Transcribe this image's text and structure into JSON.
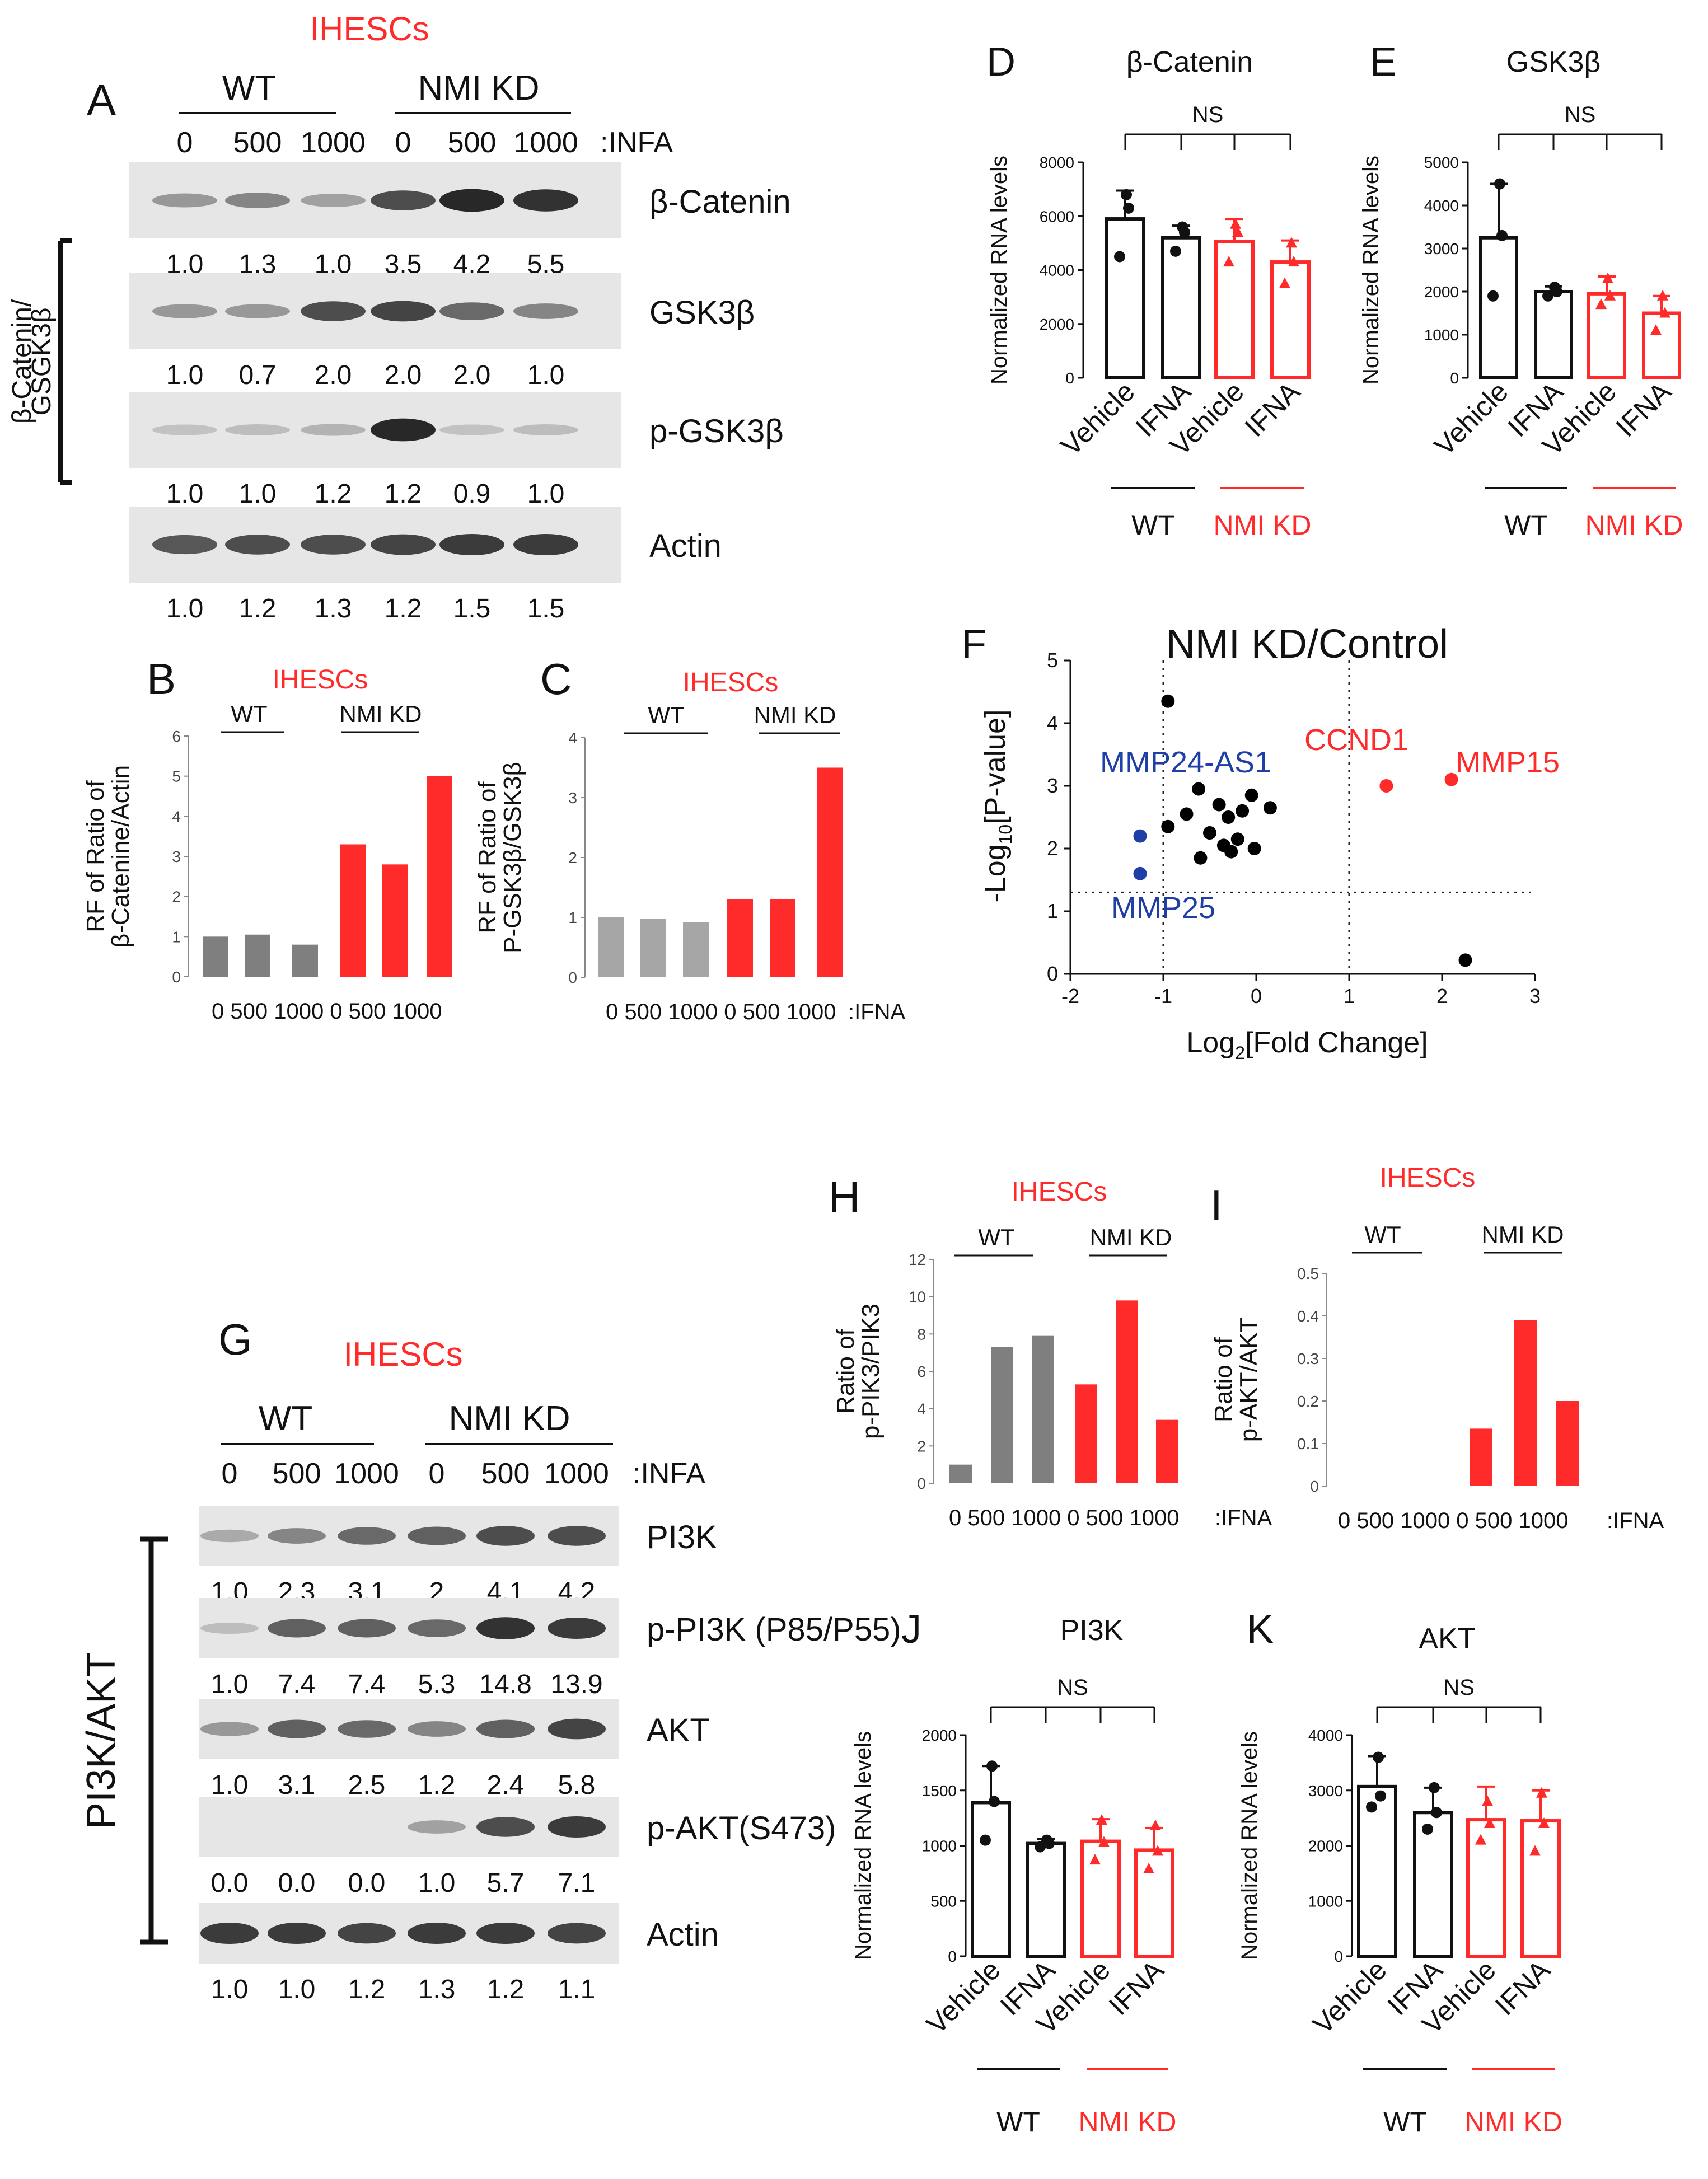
{
  "figure": {
    "panelA": {
      "letter": "A",
      "cell": "IHESCs",
      "groups": [
        "WT",
        "NMI KD"
      ],
      "doses": [
        "0",
        "500",
        "1000",
        "0",
        "500",
        "1000"
      ],
      "treatment": ":INFA",
      "side_label_line1": "β-Catenin/",
      "side_label_line2": "GSGK3β",
      "blots": [
        {
          "label": "β-Catenin",
          "intensities": [
            0.35,
            0.45,
            0.3,
            0.75,
            0.95,
            0.9
          ],
          "values": [
            "1.0",
            "1.3",
            "1.0",
            "3.5",
            "4.2",
            "5.5"
          ]
        },
        {
          "label": "GSK3β",
          "intensities": [
            0.35,
            0.35,
            0.75,
            0.8,
            0.6,
            0.45
          ],
          "values": [
            "1.0",
            "0.7",
            "2.0",
            "2.0",
            "2.0",
            "1.0"
          ]
        },
        {
          "label": "p-GSK3β",
          "intensities": [
            0.12,
            0.15,
            0.2,
            0.95,
            0.12,
            0.15
          ],
          "values": [
            "1.0",
            "1.0",
            "1.2",
            "1.2",
            "0.9",
            "1.0"
          ]
        },
        {
          "label": "Actin",
          "intensities": [
            0.7,
            0.75,
            0.75,
            0.8,
            0.85,
            0.85
          ],
          "values": [
            "1.0",
            "1.2",
            "1.3",
            "1.2",
            "1.5",
            "1.5"
          ]
        }
      ]
    },
    "panelG": {
      "letter": "G",
      "cell": "IHESCs",
      "groups": [
        "WT",
        "NMI KD"
      ],
      "doses": [
        "0",
        "500",
        "1000",
        "0",
        "500",
        "1000"
      ],
      "treatment": ":INFA",
      "side_label": "PI3K/AKT",
      "blots": [
        {
          "label": "PI3K",
          "intensities": [
            0.25,
            0.45,
            0.6,
            0.65,
            0.75,
            0.75
          ],
          "values": [
            "1.0",
            "2.3",
            "3.1",
            "2",
            "4.1",
            "4.2"
          ]
        },
        {
          "label": "p-PI3K (P85/P55)",
          "intensities": [
            0.15,
            0.65,
            0.65,
            0.6,
            0.9,
            0.85
          ],
          "values": [
            "1.0",
            "7.4",
            "7.4",
            "5.3",
            "14.8",
            "13.9"
          ]
        },
        {
          "label": "AKT",
          "intensities": [
            0.35,
            0.65,
            0.6,
            0.45,
            0.65,
            0.8
          ],
          "values": [
            "1.0",
            "3.1",
            "2.5",
            "1.2",
            "2.4",
            "5.8"
          ]
        },
        {
          "label": "p-AKT(S473)",
          "intensities": [
            0.0,
            0.0,
            0.0,
            0.3,
            0.75,
            0.85
          ],
          "values": [
            "0.0",
            "0.0",
            "0.0",
            "1.0",
            "5.7",
            "7.1"
          ]
        },
        {
          "label": "Actin",
          "intensities": [
            0.85,
            0.85,
            0.8,
            0.85,
            0.85,
            0.8
          ],
          "values": [
            "1.0",
            "1.0",
            "1.2",
            "1.3",
            "1.2",
            "1.1"
          ]
        }
      ]
    }
  },
  "chart_data": [
    {
      "id": "B",
      "type": "bar",
      "letter": "B",
      "title": "IHESCs",
      "groups": [
        "WT",
        "NMI KD"
      ],
      "ylabel_line1": "RF of Ratio of",
      "ylabel_line2": "β-Catenine/Actin",
      "categories": [
        "0",
        "500",
        "1000",
        "0",
        "500",
        "1000"
      ],
      "values": [
        1.0,
        1.05,
        0.8,
        3.3,
        2.8,
        5.0
      ],
      "bar_colors": [
        "#7f7f7f",
        "#7f7f7f",
        "#7f7f7f",
        "#ff2a2a",
        "#ff2a2a",
        "#ff2a2a"
      ],
      "ylim": [
        0,
        6
      ],
      "yticks": [
        "0",
        "1",
        "2",
        "3",
        "4",
        "5",
        "6"
      ],
      "xtick_text": "0 500 1000  0 500 1000",
      "xlabel": ""
    },
    {
      "id": "C",
      "type": "bar",
      "letter": "C",
      "title": "IHESCs",
      "groups": [
        "WT",
        "NMI KD"
      ],
      "ylabel_line1": "RF of Ratio of",
      "ylabel_line2": "P-GSK3β/GSK3β",
      "categories": [
        "0",
        "500",
        "1000",
        "0",
        "500",
        "1000"
      ],
      "values": [
        1.0,
        0.98,
        0.92,
        1.3,
        1.3,
        3.5
      ],
      "bar_colors": [
        "#a6a6a6",
        "#a6a6a6",
        "#a6a6a6",
        "#ff2a2a",
        "#ff2a2a",
        "#ff2a2a"
      ],
      "ylim": [
        0,
        4
      ],
      "yticks": [
        "0",
        "1",
        "2",
        "3",
        "4"
      ],
      "xtick_text": "0 500 1000  0 500 1000",
      "xlabel": ":IFNA"
    },
    {
      "id": "D",
      "type": "bar",
      "letter": "D",
      "title": "β-Catenin",
      "ylabel": "Normalized RNA levels",
      "categories": [
        "Vehicle",
        "IFNA",
        "Vehicle",
        "IFNA"
      ],
      "groups": [
        "WT",
        "NMI KD"
      ],
      "values": [
        5900,
        5200,
        5050,
        4300
      ],
      "errors": [
        1050,
        450,
        850,
        800
      ],
      "points": [
        [
          4500,
          6300,
          6800
        ],
        [
          4700,
          5400,
          5600
        ],
        [
          4300,
          5400,
          5700
        ],
        [
          3500,
          4300,
          5000
        ]
      ],
      "ylim": [
        0,
        8000
      ],
      "yticks": [
        "0",
        "2000",
        "4000",
        "6000",
        "8000"
      ],
      "annotation": "NS"
    },
    {
      "id": "E",
      "type": "bar",
      "letter": "E",
      "title": "GSK3β",
      "ylabel": "Normalized RNA levels",
      "categories": [
        "Vehicle",
        "IFNA",
        "Vehicle",
        "IFNA"
      ],
      "groups": [
        "WT",
        "NMI KD"
      ],
      "values": [
        3250,
        2000,
        1950,
        1500
      ],
      "errors": [
        1250,
        120,
        400,
        400
      ],
      "points": [
        [
          1900,
          3300,
          4500
        ],
        [
          1900,
          2000,
          2100
        ],
        [
          1700,
          1900,
          2300
        ],
        [
          1100,
          1500,
          1900
        ]
      ],
      "ylim": [
        0,
        5000
      ],
      "yticks": [
        "0",
        "1000",
        "2000",
        "3000",
        "4000",
        "5000"
      ],
      "annotation": "NS"
    },
    {
      "id": "F",
      "type": "scatter",
      "letter": "F",
      "title": "NMI KD/Control",
      "xlabel_main": "Log",
      "xlabel_sub": "2",
      "xlabel_rest": "[Fold Change]",
      "ylabel_main": "-Log",
      "ylabel_sub": "10",
      "ylabel_rest": "[P-value]",
      "xlim": [
        -2,
        3
      ],
      "ylim": [
        0,
        5
      ],
      "xticks": [
        "-2",
        "-1",
        "0",
        "1",
        "2",
        "3"
      ],
      "yticks": [
        "0",
        "1",
        "2",
        "3",
        "4",
        "5"
      ],
      "thresholds": {
        "x": [
          -1,
          1
        ],
        "y": 1.3
      },
      "points": [
        {
          "x": -0.95,
          "y": 4.35,
          "color": "#000000"
        },
        {
          "x": -0.95,
          "y": 2.35,
          "color": "#000000"
        },
        {
          "x": -0.75,
          "y": 2.55,
          "color": "#000000"
        },
        {
          "x": -0.62,
          "y": 2.95,
          "color": "#000000"
        },
        {
          "x": -0.6,
          "y": 1.85,
          "color": "#000000"
        },
        {
          "x": -0.5,
          "y": 2.25,
          "color": "#000000"
        },
        {
          "x": -0.4,
          "y": 2.7,
          "color": "#000000"
        },
        {
          "x": -0.35,
          "y": 2.05,
          "color": "#000000"
        },
        {
          "x": -0.3,
          "y": 2.5,
          "color": "#000000"
        },
        {
          "x": -0.27,
          "y": 1.95,
          "color": "#000000"
        },
        {
          "x": -0.2,
          "y": 2.15,
          "color": "#000000"
        },
        {
          "x": -0.15,
          "y": 2.6,
          "color": "#000000"
        },
        {
          "x": -0.05,
          "y": 2.85,
          "color": "#000000"
        },
        {
          "x": -0.02,
          "y": 2.0,
          "color": "#000000"
        },
        {
          "x": 0.15,
          "y": 2.65,
          "color": "#000000"
        },
        {
          "x": -1.25,
          "y": 2.2,
          "color": "#1f3fa6"
        },
        {
          "x": -1.25,
          "y": 1.6,
          "color": "#1f3fa6"
        },
        {
          "x": 1.4,
          "y": 3.0,
          "color": "#ff2a2a"
        },
        {
          "x": 2.1,
          "y": 3.1,
          "color": "#ff2a2a"
        },
        {
          "x": 2.25,
          "y": 0.22,
          "color": "#000000"
        }
      ],
      "annotations": [
        {
          "text": "MMP24-AS1",
          "color": "#1f3fa6"
        },
        {
          "text": "MMP25",
          "color": "#1f3fa6"
        },
        {
          "text": "CCND1",
          "color": "#ff2a2a"
        },
        {
          "text": "MMP15",
          "color": "#ff2a2a"
        }
      ]
    },
    {
      "id": "H",
      "type": "bar",
      "letter": "H",
      "title": "IHESCs",
      "groups": [
        "WT",
        "NMI KD"
      ],
      "ylabel_line1": "Ratio of",
      "ylabel_line2": "p-PIK3/PIK3",
      "categories": [
        "0",
        "500",
        "1000",
        "0",
        "500",
        "1000"
      ],
      "values": [
        1.0,
        7.3,
        7.9,
        5.3,
        9.8,
        3.4
      ],
      "bar_colors": [
        "#7f7f7f",
        "#7f7f7f",
        "#7f7f7f",
        "#ff2a2a",
        "#ff2a2a",
        "#ff2a2a"
      ],
      "ylim": [
        0,
        12
      ],
      "yticks": [
        "0",
        "2",
        "4",
        "6",
        "8",
        "10",
        "12"
      ],
      "xtick_text": "0 500 1000  0 500 1000",
      "xlabel": ":IFNA"
    },
    {
      "id": "I",
      "type": "bar",
      "letter": "I",
      "title": "IHESCs",
      "groups": [
        "WT",
        "NMI KD"
      ],
      "ylabel_line1": "Ratio of",
      "ylabel_line2": "p-AKT/AKT",
      "categories": [
        "0",
        "500",
        "1000",
        "0",
        "500",
        "1000"
      ],
      "values": [
        0,
        0,
        0,
        0.135,
        0.39,
        0.2
      ],
      "bar_colors": [
        "#7f7f7f",
        "#7f7f7f",
        "#7f7f7f",
        "#ff2a2a",
        "#ff2a2a",
        "#ff2a2a"
      ],
      "ylim": [
        0,
        0.5
      ],
      "yticks": [
        "0",
        "0.1",
        "0.2",
        "0.3",
        "0.4",
        "0.5"
      ],
      "xtick_text": "0 500 1000  0 500 1000",
      "xlabel": ":IFNA"
    },
    {
      "id": "J",
      "type": "bar",
      "letter": "J",
      "title": "PI3K",
      "ylabel": "Normalized RNA levels",
      "categories": [
        "Vehicle",
        "IFNA",
        "Vehicle",
        "IFNA"
      ],
      "groups": [
        "WT",
        "NMI KD"
      ],
      "values": [
        1390,
        1020,
        1040,
        960
      ],
      "errors": [
        330,
        40,
        200,
        200
      ],
      "points": [
        [
          1050,
          1400,
          1720
        ],
        [
          990,
          1020,
          1050
        ],
        [
          870,
          1030,
          1230
        ],
        [
          790,
          950,
          1180
        ]
      ],
      "ylim": [
        0,
        2000
      ],
      "yticks": [
        "0",
        "500",
        "1000",
        "1500",
        "2000"
      ],
      "annotation": "NS"
    },
    {
      "id": "K",
      "type": "bar",
      "letter": "K",
      "title": "AKT",
      "ylabel": "Normalized RNA levels",
      "categories": [
        "Vehicle",
        "IFNA",
        "Vehicle",
        "IFNA"
      ],
      "groups": [
        "WT",
        "NMI KD"
      ],
      "values": [
        3070,
        2600,
        2470,
        2450
      ],
      "errors": [
        550,
        450,
        600,
        550
      ],
      "points": [
        [
          2700,
          2900,
          3600
        ],
        [
          2300,
          2600,
          3050
        ],
        [
          2100,
          2400,
          2800
        ],
        [
          1900,
          2400,
          2950
        ]
      ],
      "ylim": [
        0,
        4000
      ],
      "yticks": [
        "0",
        "1000",
        "2000",
        "3000",
        "4000"
      ],
      "annotation": "NS"
    }
  ]
}
